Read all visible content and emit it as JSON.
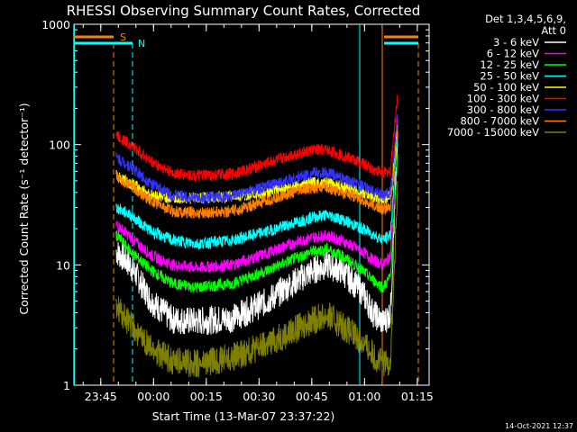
{
  "chart_data": {
    "type": "line",
    "title": "RHESSI Observing Summary Count Rates, Corrected",
    "xlabel": "Start Time (13-Mar-07 23:37:22)",
    "ylabel": "Corrected Count Rate (s⁻¹ detector⁻¹)",
    "y_scale": "log",
    "ylim": [
      1,
      1000
    ],
    "xlim_minutes_after_23_37_22": [
      0,
      101
    ],
    "x_ticks": [
      "23:45",
      "00:00",
      "00:15",
      "00:30",
      "00:45",
      "01:00",
      "01:15"
    ],
    "y_ticks": [
      "1",
      "10",
      "100",
      "1000"
    ],
    "legend_header": [
      "Det 1,3,4,5,6,9,",
      "Att 0"
    ],
    "legend_position": "right",
    "timestamp": "14-Oct-2021 12:37",
    "markers": [
      {
        "label": "S",
        "color": "#ff8000",
        "bar_color": "#ff8000"
      },
      {
        "label": "N",
        "color": "#00ffff",
        "bar_color": "#00ffff"
      }
    ],
    "series": [
      {
        "name": "3 - 6 keV",
        "color": "#ffffff",
        "points": [
          [
            12,
            13
          ],
          [
            16,
            10
          ],
          [
            22,
            5
          ],
          [
            28,
            3.5
          ],
          [
            35,
            3.4
          ],
          [
            45,
            3.6
          ],
          [
            55,
            5
          ],
          [
            62,
            7
          ],
          [
            68,
            9
          ],
          [
            72,
            10
          ],
          [
            76,
            9
          ],
          [
            82,
            6
          ],
          [
            85,
            4
          ],
          [
            88,
            3.3
          ],
          [
            90,
            4
          ],
          [
            92,
            100
          ]
        ]
      },
      {
        "name": "6 - 12 keV",
        "color": "#ff00ff",
        "points": [
          [
            12,
            22
          ],
          [
            16,
            17
          ],
          [
            22,
            12
          ],
          [
            28,
            10
          ],
          [
            35,
            9.5
          ],
          [
            45,
            10
          ],
          [
            55,
            12.5
          ],
          [
            62,
            15
          ],
          [
            68,
            17
          ],
          [
            72,
            17.5
          ],
          [
            76,
            16
          ],
          [
            82,
            13
          ],
          [
            85,
            11
          ],
          [
            88,
            10
          ],
          [
            90,
            12
          ],
          [
            92,
            150
          ]
        ]
      },
      {
        "name": "12 - 25 keV",
        "color": "#00ff00",
        "points": [
          [
            12,
            18
          ],
          [
            16,
            13
          ],
          [
            22,
            9
          ],
          [
            28,
            7
          ],
          [
            35,
            6.5
          ],
          [
            45,
            7
          ],
          [
            55,
            9
          ],
          [
            62,
            11
          ],
          [
            68,
            13
          ],
          [
            72,
            13.5
          ],
          [
            76,
            12
          ],
          [
            82,
            9
          ],
          [
            85,
            7.5
          ],
          [
            88,
            6.5
          ],
          [
            90,
            8
          ],
          [
            92,
            80
          ]
        ]
      },
      {
        "name": "25 - 50 keV",
        "color": "#00ffff",
        "points": [
          [
            12,
            30
          ],
          [
            16,
            26
          ],
          [
            22,
            19
          ],
          [
            28,
            16
          ],
          [
            35,
            15
          ],
          [
            45,
            16
          ],
          [
            55,
            19
          ],
          [
            62,
            22
          ],
          [
            68,
            25
          ],
          [
            72,
            26
          ],
          [
            76,
            24
          ],
          [
            82,
            20
          ],
          [
            85,
            18
          ],
          [
            88,
            16
          ],
          [
            90,
            18
          ],
          [
            92,
            120
          ]
        ]
      },
      {
        "name": "50 - 100 keV",
        "color": "#ffff00",
        "points": [
          [
            12,
            55
          ],
          [
            16,
            48
          ],
          [
            22,
            38
          ],
          [
            28,
            36
          ],
          [
            35,
            36
          ],
          [
            45,
            37
          ],
          [
            55,
            40
          ],
          [
            62,
            45
          ],
          [
            68,
            48
          ],
          [
            72,
            48
          ],
          [
            76,
            45
          ],
          [
            82,
            40
          ],
          [
            85,
            37
          ],
          [
            88,
            35
          ],
          [
            90,
            38
          ],
          [
            92,
            150
          ]
        ]
      },
      {
        "name": "100 - 300 keV",
        "color": "#ff0000",
        "points": [
          [
            12,
            120
          ],
          [
            16,
            100
          ],
          [
            22,
            72
          ],
          [
            28,
            58
          ],
          [
            35,
            55
          ],
          [
            45,
            57
          ],
          [
            55,
            70
          ],
          [
            62,
            82
          ],
          [
            68,
            90
          ],
          [
            72,
            90
          ],
          [
            76,
            82
          ],
          [
            82,
            70
          ],
          [
            85,
            62
          ],
          [
            88,
            58
          ],
          [
            90,
            60
          ],
          [
            92,
            260
          ]
        ]
      },
      {
        "name": "300 - 800 keV",
        "color": "#3333ff",
        "points": [
          [
            12,
            78
          ],
          [
            16,
            66
          ],
          [
            22,
            47
          ],
          [
            28,
            38
          ],
          [
            35,
            36
          ],
          [
            45,
            37
          ],
          [
            55,
            45
          ],
          [
            62,
            52
          ],
          [
            68,
            58
          ],
          [
            72,
            58
          ],
          [
            76,
            53
          ],
          [
            82,
            45
          ],
          [
            85,
            41
          ],
          [
            88,
            38
          ],
          [
            90,
            40
          ],
          [
            92,
            170
          ]
        ]
      },
      {
        "name": "800 - 7000 keV",
        "color": "#ff8000",
        "points": [
          [
            12,
            55
          ],
          [
            16,
            46
          ],
          [
            22,
            34
          ],
          [
            28,
            28
          ],
          [
            35,
            27
          ],
          [
            45,
            28
          ],
          [
            55,
            34
          ],
          [
            62,
            40
          ],
          [
            68,
            44
          ],
          [
            72,
            44
          ],
          [
            76,
            40
          ],
          [
            82,
            35
          ],
          [
            85,
            31
          ],
          [
            88,
            29
          ],
          [
            90,
            30
          ],
          [
            92,
            130
          ]
        ]
      },
      {
        "name": "7000 - 15000 keV",
        "color": "#808000",
        "points": [
          [
            12,
            4.5
          ],
          [
            16,
            3.2
          ],
          [
            22,
            2
          ],
          [
            28,
            1.6
          ],
          [
            35,
            1.5
          ],
          [
            45,
            1.7
          ],
          [
            55,
            2.2
          ],
          [
            62,
            2.8
          ],
          [
            68,
            3.5
          ],
          [
            72,
            3.8
          ],
          [
            76,
            3.2
          ],
          [
            82,
            2.3
          ],
          [
            85,
            1.8
          ],
          [
            88,
            1.5
          ],
          [
            90,
            1.6
          ],
          [
            92,
            40
          ]
        ]
      }
    ]
  }
}
